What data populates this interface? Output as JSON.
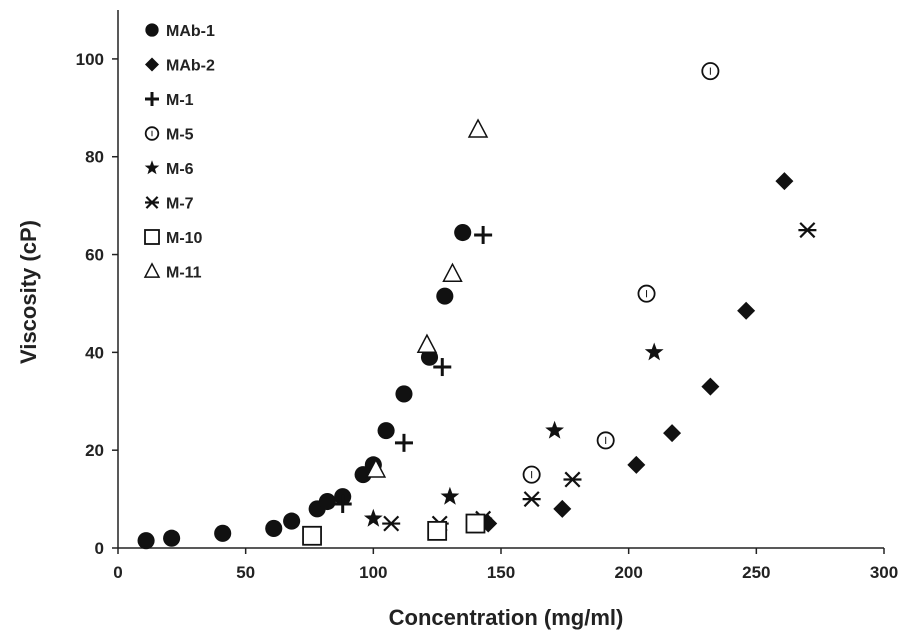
{
  "chart_data": {
    "type": "scatter",
    "title": "",
    "xlabel": "Concentration (mg/ml)",
    "ylabel": "Viscosity (cP)",
    "xlim": [
      0,
      300
    ],
    "ylim": [
      0,
      110
    ],
    "x_ticks": [
      0,
      50,
      100,
      150,
      200,
      250,
      300
    ],
    "y_ticks": [
      0,
      20,
      40,
      60,
      80,
      100
    ],
    "grid": false,
    "legend_position": "top-left",
    "series": [
      {
        "name": "MAb-1",
        "marker": "circle-filled",
        "color": "#111111",
        "x": [
          11,
          21,
          41,
          61,
          68,
          78,
          82,
          88,
          96,
          100,
          105,
          112,
          122,
          128,
          135
        ],
        "y": [
          1.5,
          2,
          3,
          4,
          5.5,
          8,
          9.5,
          10.5,
          15,
          17,
          24,
          31.5,
          39,
          51.5,
          64.5
        ]
      },
      {
        "name": "MAb-2",
        "marker": "diamond-filled",
        "color": "#111111",
        "x": [
          145,
          174,
          203,
          217,
          232,
          246,
          261
        ],
        "y": [
          5,
          8,
          17,
          23.5,
          33,
          48.5,
          75
        ]
      },
      {
        "name": "M-1",
        "marker": "plus",
        "color": "#111111",
        "x": [
          88,
          112,
          127,
          143
        ],
        "y": [
          9,
          21.5,
          37,
          64
        ]
      },
      {
        "name": "M-5",
        "marker": "circle-open",
        "color": "#111111",
        "x": [
          162,
          191,
          207,
          232
        ],
        "y": [
          15,
          22,
          52,
          97.5
        ]
      },
      {
        "name": "M-6",
        "marker": "star-filled",
        "color": "#111111",
        "x": [
          100,
          130,
          171,
          210
        ],
        "y": [
          6,
          10.5,
          24,
          40
        ]
      },
      {
        "name": "M-7",
        "marker": "asterisk",
        "color": "#111111",
        "x": [
          107,
          126,
          143,
          162,
          178,
          270
        ],
        "y": [
          5,
          5,
          6,
          10,
          14,
          65
        ]
      },
      {
        "name": "M-10",
        "marker": "square-open",
        "color": "#111111",
        "x": [
          76,
          125,
          140
        ],
        "y": [
          2.5,
          3.5,
          5
        ]
      },
      {
        "name": "M-11",
        "marker": "triangle-open",
        "color": "#111111",
        "x": [
          101,
          121,
          131,
          141
        ],
        "y": [
          16,
          41.5,
          56,
          85.5
        ]
      }
    ]
  }
}
